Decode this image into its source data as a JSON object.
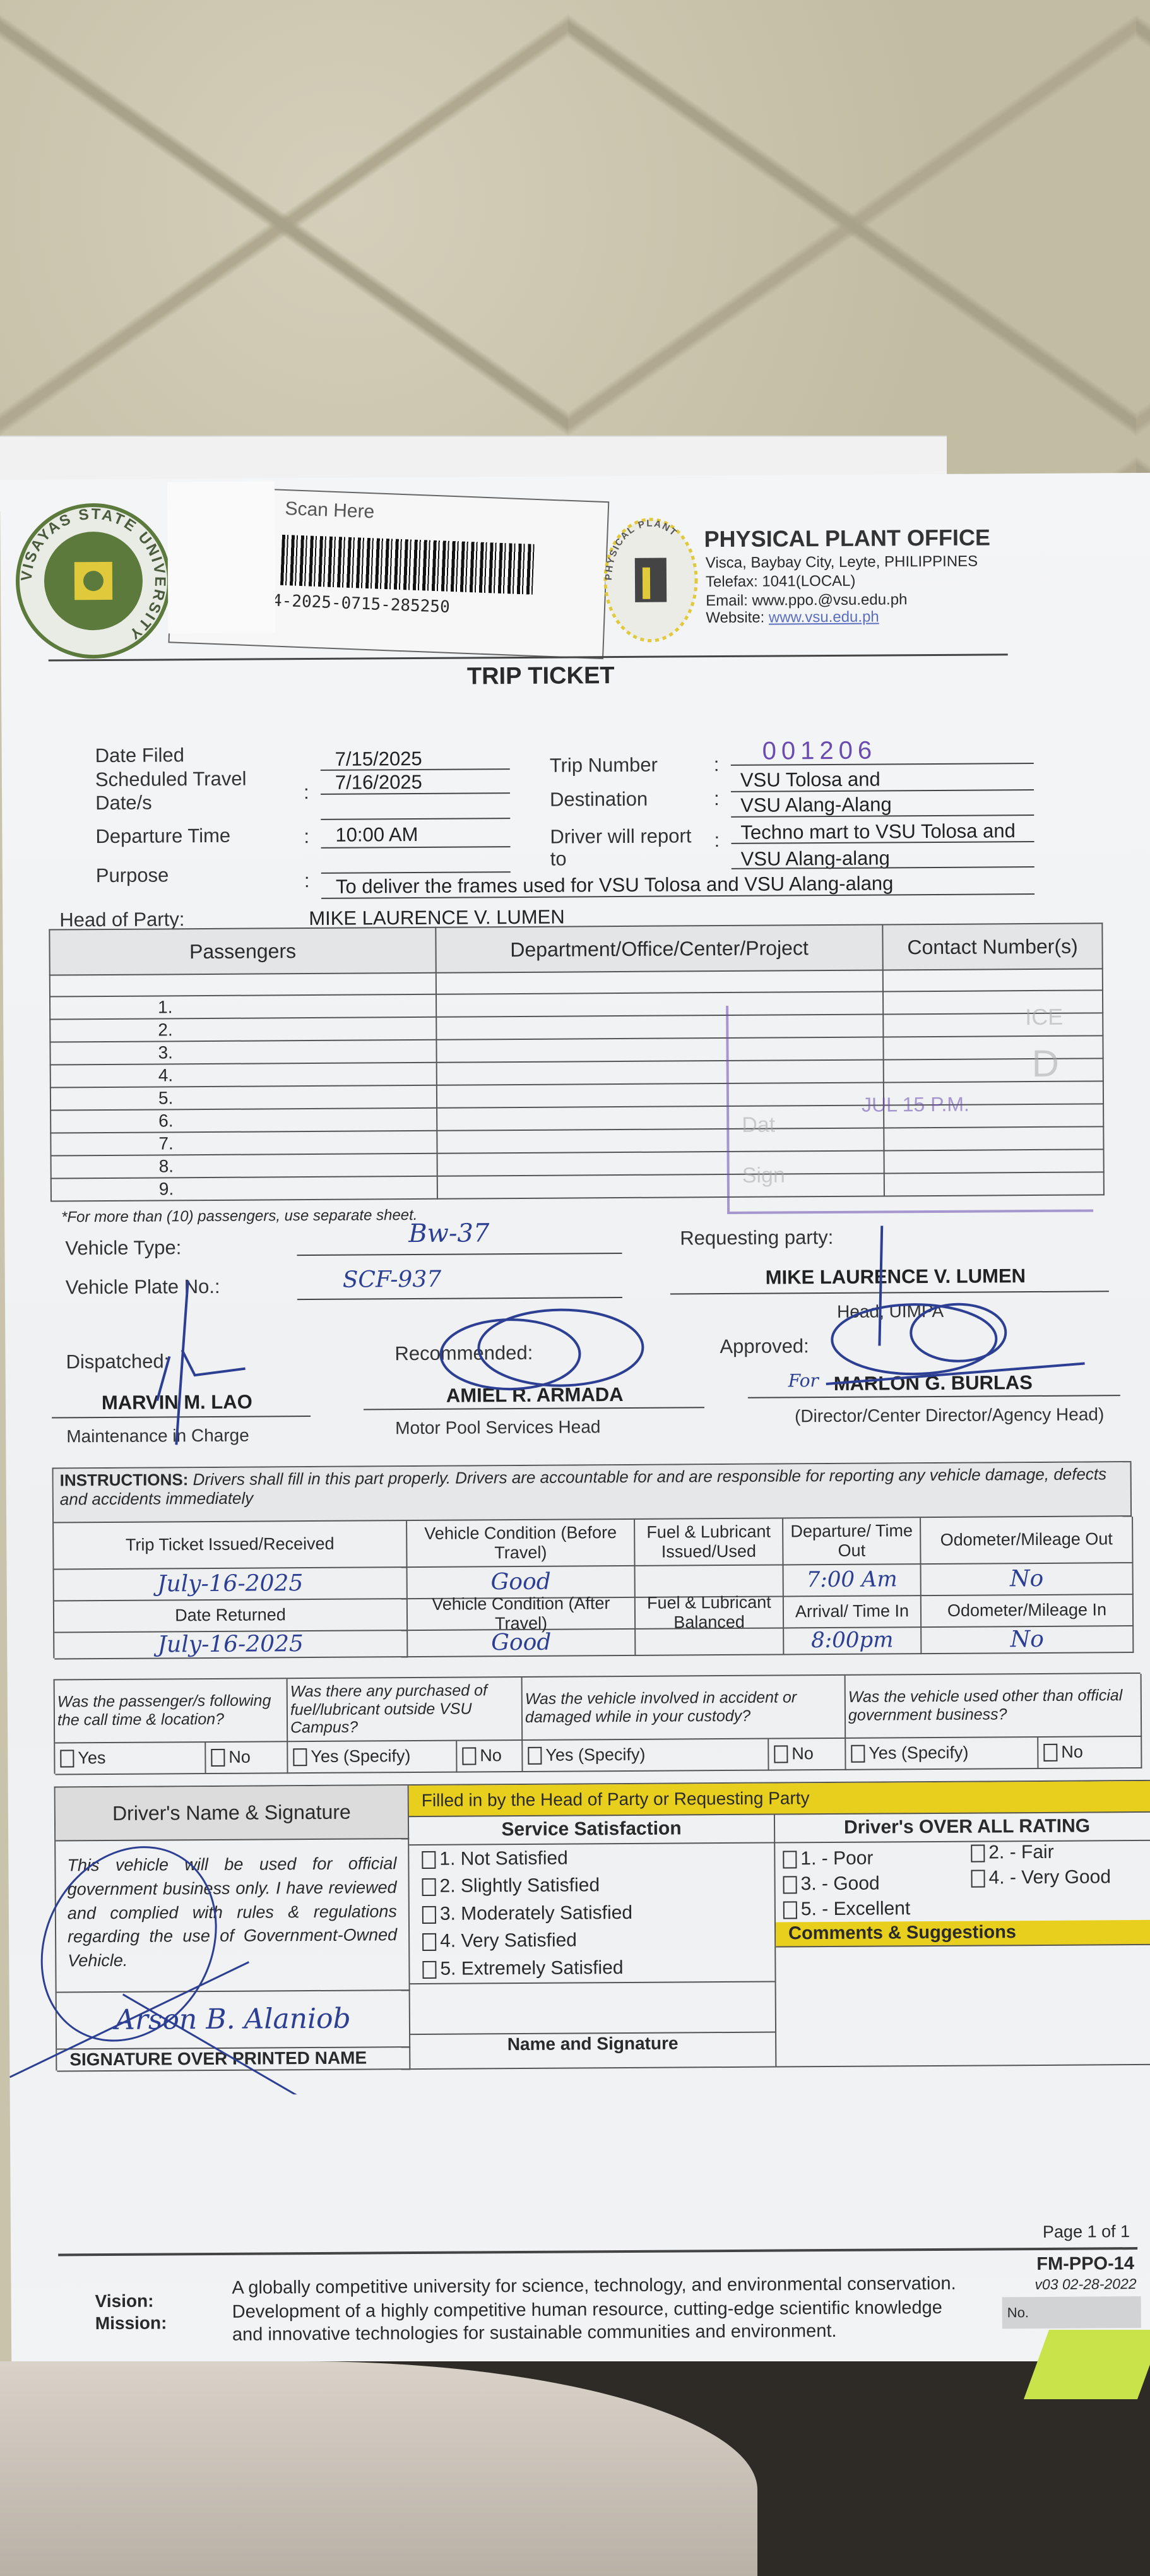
{
  "header": {
    "scan_label": "Scan Here",
    "barcode_number": "4-2025-0715-285250",
    "office_name": "PHYSICAL PLANT OFFICE",
    "address": "Visca, Baybay City, Leyte, PHILIPPINES",
    "telefax": "Telefax: 1041(LOCAL)",
    "email": "Email: www.ppo.@vsu.edu.ph",
    "website_label": "Website:",
    "website": "www.vsu.edu.ph",
    "seal_text": "VISAYAS STATE UNIVERSITY",
    "ppo_seal_text": "PHYSICAL PLANT"
  },
  "title": "TRIP TICKET",
  "fields": {
    "date_filed_label": "Date Filed",
    "date_filed": "7/15/2025",
    "scheduled_label_1": "Scheduled Travel",
    "scheduled_label_2": "Date/s",
    "scheduled": "7/16/2025",
    "departure_label": "Departure Time",
    "departure": "10:00 AM",
    "purpose_label": "Purpose",
    "purpose": "To deliver the frames used for VSU Tolosa and VSU Alang-alang",
    "trip_number_label": "Trip Number",
    "trip_number": "001206",
    "destination_label": "Destination",
    "destination_1": "VSU Tolosa and",
    "destination_2": "VSU Alang-Alang",
    "report_label_1": "Driver will report",
    "report_label_2": "to",
    "report_1": "Techno mart to VSU Tolosa and",
    "report_2": "VSU Alang-alang",
    "colon": ":",
    "head_of_party_label": "Head of Party:",
    "head_of_party": "MIKE LAURENCE V. LUMEN"
  },
  "passengers": {
    "columns": [
      "Passengers",
      "Department/Office/Center/Project",
      "Contact Number(s)"
    ],
    "rows": [
      "1.",
      "2.",
      "3.",
      "4.",
      "5.",
      "6.",
      "7.",
      "8.",
      "9."
    ],
    "footnote": "*For more than (10) passengers, use separate sheet.",
    "stamp": "JUL 15 P.M.",
    "stamp_partial": [
      "ICE",
      "D",
      "Dat",
      "Sign"
    ]
  },
  "vehicle": {
    "type_label": "Vehicle Type:",
    "type": "Bw-37",
    "plate_label": "Vehicle Plate No.:",
    "plate": "SCF-937",
    "requesting_label": "Requesting party:",
    "requesting_name": "MIKE LAURENCE V. LUMEN",
    "requesting_title": "Head, UIMPA"
  },
  "signatories": {
    "dispatched_label": "Dispatched:",
    "dispatched_name": "MARVIN M. LAO",
    "dispatched_title": "Maintenance in Charge",
    "recommended_label": "Recommended:",
    "recommended_name": "AMIEL R. ARMADA",
    "recommended_title": "Motor Pool Services Head",
    "approved_label": "Approved:",
    "approved_prefix": "For",
    "approved_name": "MARLON G. BURLAS",
    "approved_title": "(Director/Center Director/Agency Head)"
  },
  "instructions": {
    "heading": "INSTRUCTIONS:",
    "text": "Drivers shall fill in this part properly.  Drivers are accountable for and are responsible for reporting any vehicle damage, defects and accidents immediately",
    "headers_out": [
      "Trip Ticket Issued/Received",
      "Vehicle Condition (Before Travel)",
      "Fuel & Lubricant Issued/Used",
      "Departure/ Time Out",
      "Odometer/Mileage Out"
    ],
    "values_out": [
      "July-16-2025",
      "Good",
      "",
      "7:00 Am",
      "No"
    ],
    "headers_in": [
      "Date Returned",
      "Vehicle Condition (After Travel)",
      "Fuel & Lubricant Balanced",
      "Arrival/ Time In",
      "Odometer/Mileage In"
    ],
    "values_in": [
      "July-16-2025",
      "Good",
      "",
      "8:00pm",
      "No"
    ]
  },
  "questions": {
    "items": [
      {
        "q": "Was the passenger/s following the call time & location?",
        "opt1": "Yes",
        "opt2": "No"
      },
      {
        "q": "Was there any purchased of fuel/lubricant outside VSU Campus?",
        "opt1": "Yes (Specify)",
        "opt2": "No"
      },
      {
        "q": "Was the vehicle involved in accident or damaged while in your custody?",
        "opt1": "Yes (Specify)",
        "opt2": "No"
      },
      {
        "q": "Was the vehicle used other than official government business?",
        "opt1": "Yes (Specify)",
        "opt2": "No"
      }
    ]
  },
  "driver": {
    "heading": "Driver's Name & Signature",
    "statement": "This vehicle will be used for official government business only.  I have reviewed and complied with rules & regulations regarding the use of Government-Owned Vehicle.",
    "signature_name": "Arson B. Alaniob",
    "signature_label": "SIGNATURE OVER PRINTED NAME"
  },
  "head_party_section": {
    "banner": "Filled in by the Head of Party or Requesting Party",
    "service_heading": "Service Satisfaction",
    "service_options": [
      "1.  Not Satisfied",
      "2.  Slightly Satisfied",
      "3.  Moderately Satisfied",
      "4.  Very Satisfied",
      "5.  Extremely Satisfied"
    ],
    "name_sig_label": "Name and Signature",
    "rating_heading": "Driver's OVER ALL RATING",
    "ratings": [
      "1. - Poor",
      "2. - Fair",
      "3. - Good",
      "4. - Very Good",
      "5. - Excellent"
    ],
    "comments_heading": "Comments & Suggestions"
  },
  "footer": {
    "vision_label": "Vision:",
    "vision": "A globally competitive university for science, technology, and environmental conservation.",
    "mission_label": "Mission:",
    "mission_1": "Development of a highly competitive human resource, cutting-edge scientific knowledge",
    "mission_2": "and innovative technologies for sustainable communities and environment.",
    "page": "Page 1 of 1",
    "form_code": "FM-PPO-14",
    "version": "v03 02-28-2022",
    "no_label": "No."
  },
  "colors": {
    "ink": "#2c3f93",
    "stamp": "#6a4cb0",
    "yellow": "#e8cf1d",
    "seal_green": "#5b7a3c"
  }
}
